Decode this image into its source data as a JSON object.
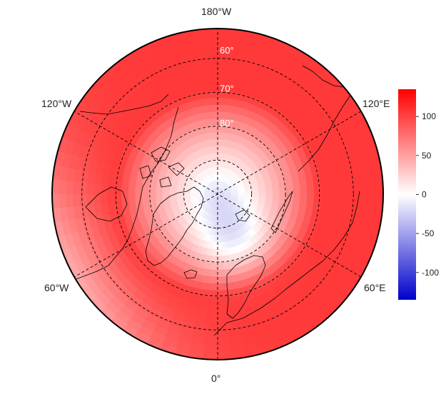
{
  "map": {
    "projection": "north-polar-stereographic",
    "longitude_labels": {
      "top": "180°W",
      "upper_left": "120°W",
      "upper_right": "120°E",
      "lower_left": "60°W",
      "lower_right": "60°E",
      "bottom": "0°"
    },
    "latitude_labels": [
      "60°",
      "70°",
      "80°"
    ],
    "graticule_style": "dashed",
    "colorbar": {
      "ticks": [
        "100",
        "50",
        "0",
        "-50",
        "-100"
      ],
      "tick_values": [
        100,
        50,
        0,
        -50,
        -100
      ],
      "range": [
        -135,
        135
      ],
      "colors": {
        "max": "#ff0000",
        "mid": "#ffffff",
        "min": "#0000cc"
      }
    },
    "field_description": {
      "pole_value": -10,
      "low_center_side": "eurasian",
      "warm_regions": [
        "north-america",
        "europe",
        "pacific"
      ],
      "cool_region": "north-atlantic-greenland"
    }
  }
}
